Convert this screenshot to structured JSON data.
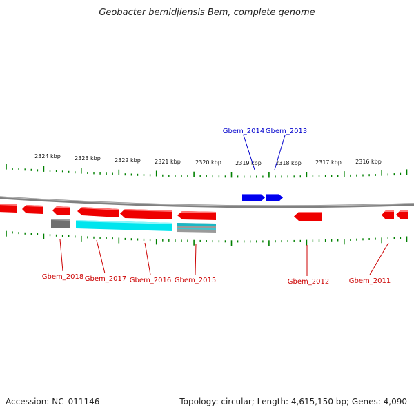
{
  "title": "Geobacter bemidjiensis Bem, complete genome",
  "footer": {
    "accession": "Accession: NC_011146",
    "summary": "Topology: circular; Length: 4,615,150 bp; Genes: 4,090"
  },
  "ruler_labels": [
    "2324 kbp",
    "2323 kbp",
    "2322 kbp",
    "2321 kbp",
    "2320 kbp",
    "2319 kbp",
    "2318 kbp",
    "2317 kbp",
    "2316 kbp"
  ],
  "colors": {
    "forward_gene": "#0000ee",
    "reverse_gene": "#ee0000",
    "rna_feature": "#00e5ee",
    "pseudo_feature": "#707070",
    "backbone": "#808080",
    "ticks": "#008000",
    "forward_label": "#0000cc",
    "reverse_label": "#cc0000"
  },
  "gene_labels": {
    "gbem_2014": "Gbem_2014",
    "gbem_2013": "Gbem_2013",
    "gbem_2018": "Gbem_2018",
    "gbem_2017": "Gbem_2017",
    "gbem_2016": "Gbem_2016",
    "gbem_2015": "Gbem_2015",
    "gbem_2012": "Gbem_2012",
    "gbem_2011": "Gbem_2011"
  }
}
